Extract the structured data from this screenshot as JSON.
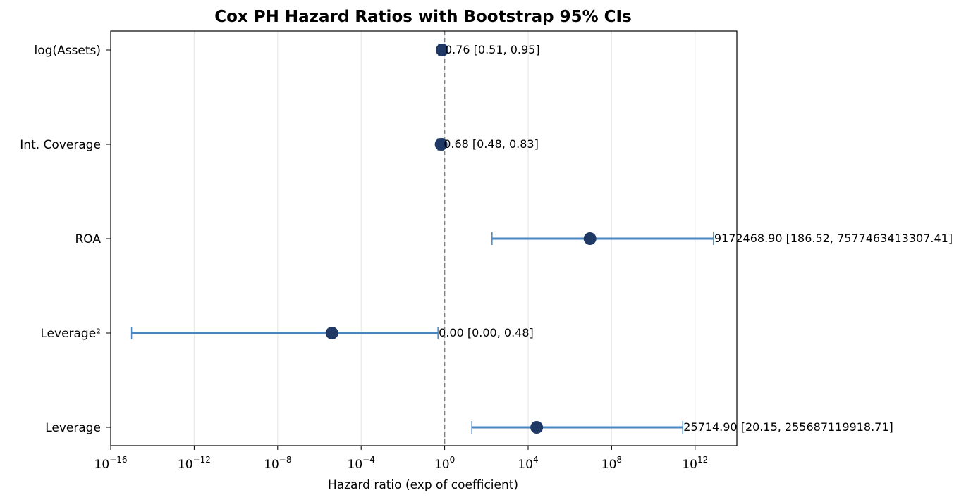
{
  "chart_data": {
    "type": "scatter",
    "title": "Cox PH Hazard Ratios with Bootstrap 95% CIs",
    "xlabel": "Hazard ratio (exp of coefficient)",
    "ylabel": "",
    "x_scale": "log",
    "xlim": [
      1e-16,
      100000000000000.0
    ],
    "x_ticks": [
      {
        "base": "10",
        "exp": "−16",
        "value": 1e-16
      },
      {
        "base": "10",
        "exp": "−12",
        "value": 1e-12
      },
      {
        "base": "10",
        "exp": "−8",
        "value": 1e-08
      },
      {
        "base": "10",
        "exp": "−4",
        "value": 0.0001
      },
      {
        "base": "10",
        "exp": "0",
        "value": 1
      },
      {
        "base": "10",
        "exp": "4",
        "value": 10000.0
      },
      {
        "base": "10",
        "exp": "8",
        "value": 100000000.0
      },
      {
        "base": "10",
        "exp": "12",
        "value": 1000000000000.0
      }
    ],
    "reference_line": 1,
    "grid": "vertical",
    "categories": [
      "log(Assets)",
      "Int. Coverage",
      "ROA",
      "Leverage²",
      "Leverage"
    ],
    "estimates": [
      0.76,
      0.68,
      9172468.9,
      4e-06,
      25714.9
    ],
    "ci_lower": [
      0.51,
      0.48,
      186.52,
      1e-15,
      20.15
    ],
    "ci_upper": [
      0.95,
      0.83,
      7577463413307.41,
      0.48,
      255687119918.71
    ],
    "labels": [
      "0.76 [0.51, 0.95]",
      "0.68 [0.48, 0.83]",
      "9172468.90 [186.52, 7577463413307.41]",
      "0.00 [0.00, 0.48]",
      "25714.90 [20.15, 255687119918.71]"
    ],
    "colors": {
      "marker": "#1f3864",
      "errorbar": "#4a86c0",
      "refline": "#808080",
      "grid": "#e5e5e5"
    }
  }
}
